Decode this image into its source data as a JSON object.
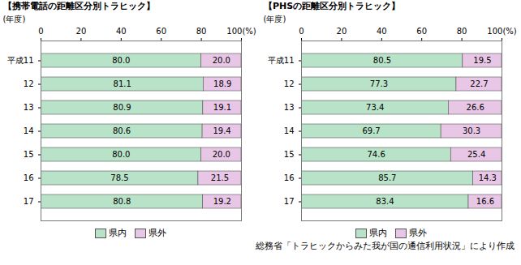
{
  "chart_data": [
    {
      "type": "bar",
      "title": "【携帯電話の距離区分別トラヒック】",
      "orientation": "horizontal",
      "stacked": true,
      "data_labels": true,
      "grid": false,
      "legend": "bottom",
      "y_label": "(年度)",
      "categories": [
        "平成11",
        "12",
        "13",
        "14",
        "15",
        "16",
        "17"
      ],
      "xlim": [
        0,
        100
      ],
      "xticks": [
        0,
        20,
        40,
        60,
        80,
        {
          "value": 100,
          "label": "100(%)"
        }
      ],
      "series": [
        {
          "name": "県内",
          "color": "#b8e3c8",
          "values": [
            80.0,
            81.1,
            80.9,
            80.6,
            80.0,
            78.5,
            80.8
          ],
          "value_labels": [
            "80.0",
            "81.1",
            "80.9",
            "80.6",
            "80.0",
            "78.5",
            "80.8"
          ]
        },
        {
          "name": "県外",
          "color": "#e8c6e6",
          "values": [
            20.0,
            18.9,
            19.1,
            19.4,
            20.0,
            21.5,
            19.2
          ],
          "value_labels": [
            "20.0",
            "18.9",
            "19.1",
            "19.4",
            "20.0",
            "21.5",
            "19.2"
          ]
        }
      ]
    },
    {
      "type": "bar",
      "title": "【PHSの距離区分別トラヒック】",
      "orientation": "horizontal",
      "stacked": true,
      "data_labels": true,
      "grid": false,
      "legend": "bottom",
      "y_label": "(年度)",
      "categories": [
        "平成11",
        "12",
        "13",
        "14",
        "15",
        "16",
        "17"
      ],
      "xlim": [
        0,
        100
      ],
      "xticks": [
        0,
        20,
        40,
        60,
        80,
        {
          "value": 100,
          "label": "100(%)"
        }
      ],
      "series": [
        {
          "name": "県内",
          "color": "#b8e3c8",
          "values": [
            80.5,
            77.3,
            73.4,
            69.7,
            74.6,
            85.7,
            83.4
          ],
          "value_labels": [
            "80.5",
            "77.3",
            "73.4",
            "69.7",
            "74.6",
            "85.7",
            "83.4"
          ]
        },
        {
          "name": "県外",
          "color": "#e8c6e6",
          "values": [
            19.5,
            22.7,
            26.6,
            30.3,
            25.4,
            14.3,
            16.6
          ],
          "value_labels": [
            "19.5",
            "22.7",
            "26.6",
            "30.3",
            "25.4",
            "14.3",
            "16.6"
          ]
        }
      ]
    }
  ],
  "caption": "総務省「トラヒックからみた我が国の通信利用状況」により作成"
}
